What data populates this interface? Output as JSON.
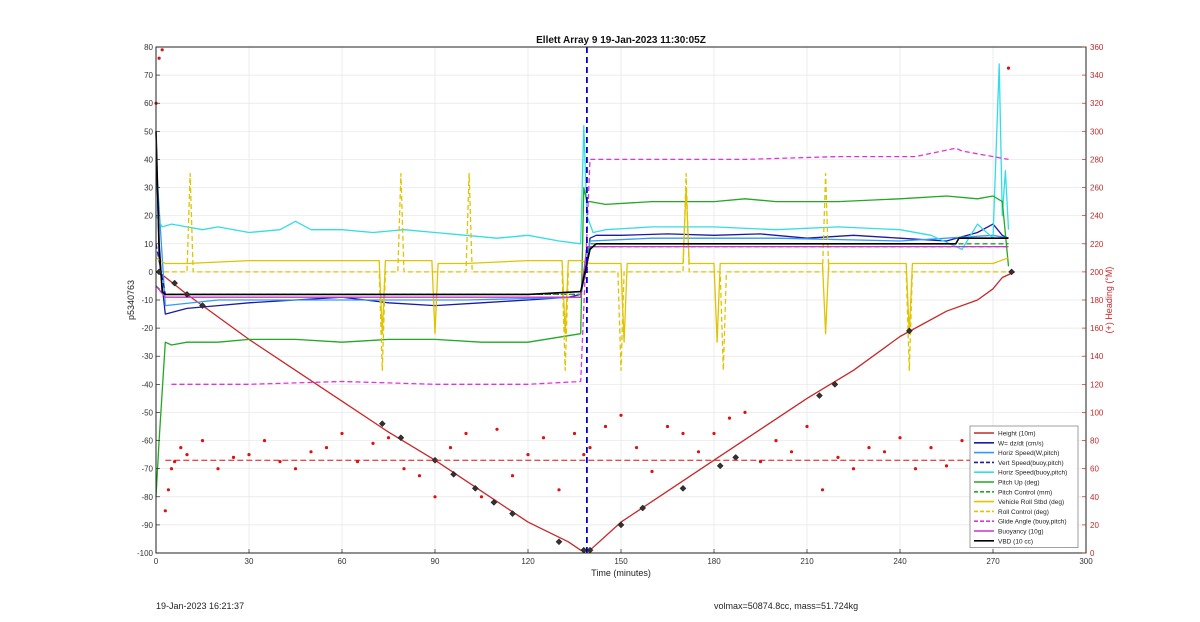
{
  "chart_data": {
    "type": "line",
    "title": "Ellett Array 9 19-Jan-2023 11:30:05Z",
    "xlabel": "Time (minutes)",
    "ylabel": "p5340763",
    "ylabel_right": "(+) Heading (°M)",
    "xlim": [
      0,
      300
    ],
    "ylim": [
      -100,
      80
    ],
    "ylim_right": [
      0,
      360
    ],
    "xticks": [
      0,
      30,
      60,
      90,
      120,
      150,
      180,
      210,
      240,
      270,
      300
    ],
    "yticks": [
      -100,
      -90,
      -80,
      -70,
      -60,
      -50,
      -40,
      -30,
      -20,
      -10,
      0,
      10,
      20,
      30,
      40,
      50,
      60,
      70,
      80
    ],
    "yticks_right": [
      0,
      20,
      40,
      60,
      80,
      100,
      120,
      140,
      160,
      180,
      200,
      220,
      240,
      260,
      280,
      300,
      320,
      340,
      360
    ],
    "grid": true,
    "legend_position": "bottom-right",
    "vertical_marker_x": 139,
    "colors": {
      "height": "#c62828",
      "wdzdt": "#1a1aa6",
      "horiz": "#3399ff",
      "cyan": "#33dde6",
      "pitch": "#22a822",
      "roll": "#e0c400",
      "glide": "#e033e0",
      "buoyancy": "#cc33cc",
      "vbd": "#000000",
      "heading": "#dd1111",
      "marker": "#0000cc"
    },
    "series": [
      {
        "name": "Height (10m)",
        "key": "height",
        "dash": false,
        "x": [
          0,
          2,
          10,
          20,
          30,
          45,
          60,
          75,
          90,
          105,
          120,
          133,
          137,
          140,
          150,
          165,
          180,
          195,
          210,
          225,
          240,
          255,
          265,
          270,
          273,
          277
        ],
        "y": [
          0,
          -1,
          -8,
          -16,
          -24,
          -35,
          -46,
          -57,
          -67,
          -78,
          -89,
          -96,
          -99,
          -99,
          -89,
          -78,
          -67,
          -56,
          -45,
          -35,
          -23,
          -14,
          -10,
          -6,
          -2,
          0
        ]
      },
      {
        "name": "W= dz/dt (cm/s)",
        "key": "wdzdt",
        "dash": false,
        "x": [
          0,
          1,
          3,
          10,
          20,
          30,
          45,
          60,
          75,
          90,
          105,
          120,
          133,
          137,
          139,
          140,
          142,
          150,
          165,
          180,
          195,
          210,
          225,
          240,
          255,
          265,
          270,
          273,
          275
        ],
        "y": [
          50,
          5,
          -15,
          -13,
          -12,
          -11,
          -10,
          -9,
          -11,
          -12,
          -11,
          -10,
          -9,
          -8,
          2,
          12,
          13,
          13,
          13.5,
          13,
          13.5,
          12,
          13,
          12,
          11,
          14,
          17,
          13,
          12
        ]
      },
      {
        "name": "Horiz Speed(W,pitch)",
        "key": "horiz",
        "dash": false,
        "x": [
          0,
          3,
          20,
          60,
          100,
          137,
          140,
          160,
          200,
          240,
          270,
          275
        ],
        "y": [
          40,
          -12,
          -10,
          -10,
          -10,
          -9,
          11,
          12,
          12,
          11,
          13,
          12
        ]
      },
      {
        "name": "Vert Speed(buoy,pitch)",
        "key": "wdzdt",
        "dash": true,
        "x": [
          0,
          3,
          50,
          100,
          137,
          140,
          200,
          250,
          275
        ],
        "y": [
          10,
          -8,
          -8,
          -8,
          -8,
          9,
          9,
          9,
          9
        ]
      },
      {
        "name": "Horiz Speed(buoy,pitch)",
        "key": "cyan",
        "dash": false,
        "x": [
          0,
          2,
          5,
          10,
          15,
          20,
          30,
          40,
          45,
          50,
          60,
          70,
          80,
          90,
          100,
          110,
          120,
          130,
          137,
          138,
          139,
          141,
          145,
          160,
          180,
          200,
          220,
          240,
          250,
          260,
          265,
          270,
          272,
          273,
          274,
          275
        ],
        "y": [
          20,
          16,
          17,
          16,
          15,
          16,
          14,
          15,
          18,
          15,
          15,
          14,
          15,
          14,
          13,
          12,
          13,
          11,
          10,
          52,
          20,
          14,
          15,
          16,
          16,
          15,
          16,
          15,
          13,
          8,
          17,
          12,
          74,
          20,
          36,
          15
        ]
      },
      {
        "name": "Pitch Up (deg)",
        "key": "pitch",
        "dash": false,
        "x": [
          0,
          1,
          3,
          5,
          10,
          20,
          30,
          45,
          60,
          75,
          90,
          105,
          120,
          137,
          138,
          139,
          140,
          145,
          160,
          180,
          190,
          200,
          210,
          220,
          240,
          255,
          265,
          270,
          273,
          275
        ],
        "y": [
          -80,
          -60,
          -25,
          -26,
          -25,
          -25,
          -24,
          -24,
          -25,
          -24,
          -24,
          -25,
          -25,
          -22,
          30,
          25,
          25,
          24,
          25,
          25,
          26,
          25,
          25,
          25,
          26,
          27,
          26,
          27,
          25,
          2
        ]
      },
      {
        "name": "Pitch Control (mm)",
        "key": "pitch",
        "dash": true,
        "x": [
          0,
          3,
          50,
          100,
          137,
          140,
          200,
          250,
          275
        ],
        "y": [
          -5,
          -8,
          -8,
          -8,
          -8,
          10,
          10,
          10,
          10
        ]
      },
      {
        "name": "Vehicle Roll Stbd (deg)",
        "key": "roll",
        "dash": false,
        "x": [
          0,
          3,
          10,
          30,
          60,
          72,
          73,
          74,
          80,
          89,
          90,
          91,
          100,
          120,
          131,
          132,
          133,
          137,
          140,
          150,
          151,
          152,
          160,
          170,
          171,
          172,
          180,
          181,
          182,
          190,
          210,
          215,
          216,
          217,
          240,
          242,
          243,
          244,
          270,
          275
        ],
        "y": [
          5,
          3,
          3,
          4,
          4,
          4,
          -22,
          4,
          4,
          4,
          -22,
          3,
          3,
          4,
          4,
          -22,
          4,
          4,
          3,
          3,
          -25,
          3,
          3,
          3,
          30,
          3,
          3,
          -25,
          3,
          3,
          3,
          3,
          -22,
          3,
          3,
          3,
          -22,
          3,
          3,
          5
        ]
      },
      {
        "name": "Roll Control (deg)",
        "key": "roll",
        "dash": true,
        "x": [
          0,
          3,
          10,
          11,
          12,
          20,
          72,
          73,
          74,
          78,
          79,
          80,
          100,
          101,
          102,
          131,
          132,
          133,
          137,
          140,
          149,
          150,
          151,
          170,
          171,
          172,
          182,
          183,
          184,
          215,
          216,
          217,
          242,
          243,
          244,
          270,
          275
        ],
        "y": [
          0,
          0,
          0,
          35,
          0,
          0,
          0,
          -35,
          0,
          0,
          35,
          0,
          0,
          35,
          0,
          0,
          -35,
          0,
          0,
          0,
          0,
          -35,
          0,
          0,
          35,
          0,
          0,
          -35,
          0,
          0,
          35,
          0,
          0,
          -35,
          0,
          0,
          0
        ]
      },
      {
        "name": "Glide Angle (buoy,pitch)",
        "key": "glide",
        "dash": true,
        "x": [
          5,
          30,
          60,
          90,
          120,
          137,
          140,
          160,
          190,
          220,
          245,
          258,
          260,
          270,
          275
        ],
        "y": [
          -40,
          -40,
          -39,
          -40,
          -40,
          -39,
          40,
          40,
          40,
          41,
          41,
          44,
          43,
          41,
          40
        ]
      },
      {
        "name": "Buoyancy (10g)",
        "key": "buoyancy",
        "dash": false,
        "x": [
          0,
          3,
          50,
          100,
          137,
          139,
          200,
          250,
          275
        ],
        "y": [
          -5,
          -9,
          -9,
          -9,
          -9,
          9,
          9,
          9,
          9
        ]
      },
      {
        "name": "VBD (10 cc)",
        "key": "vbd",
        "dash": false,
        "x": [
          0,
          1,
          2,
          3,
          30,
          60,
          90,
          120,
          137,
          140,
          142,
          160,
          200,
          240,
          258,
          259,
          260,
          270,
          275
        ],
        "y": [
          50,
          10,
          -7,
          -8,
          -8,
          -8,
          -8,
          -8,
          -7,
          8,
          10,
          10,
          10,
          10,
          10,
          12,
          12,
          12,
          12
        ]
      }
    ],
    "heading_series": {
      "name": "(+) Heading (°M)",
      "axis": "right",
      "mean": 66,
      "x": [
        0,
        1,
        2,
        3,
        4,
        5,
        6,
        8,
        10,
        15,
        20,
        25,
        30,
        35,
        40,
        45,
        50,
        55,
        60,
        65,
        70,
        75,
        80,
        85,
        90,
        95,
        100,
        105,
        110,
        115,
        120,
        125,
        130,
        135,
        138,
        140,
        145,
        150,
        155,
        160,
        165,
        170,
        175,
        180,
        185,
        190,
        195,
        200,
        205,
        210,
        215,
        220,
        225,
        230,
        235,
        240,
        245,
        250,
        255,
        260,
        265,
        270,
        273,
        275
      ],
      "y": [
        320,
        352,
        358,
        30,
        45,
        60,
        65,
        75,
        70,
        80,
        60,
        68,
        70,
        80,
        65,
        60,
        72,
        75,
        85,
        65,
        78,
        82,
        60,
        55,
        40,
        75,
        85,
        40,
        88,
        55,
        70,
        82,
        45,
        85,
        70,
        75,
        90,
        98,
        75,
        58,
        90,
        85,
        72,
        85,
        96,
        100,
        65,
        80,
        72,
        90,
        45,
        68,
        60,
        75,
        72,
        82,
        60,
        75,
        62,
        80,
        55,
        70,
        60,
        345
      ]
    },
    "markers": {
      "name": "Height (10m)",
      "x": [
        1,
        6,
        10,
        15,
        73,
        79,
        90,
        96,
        103,
        109,
        115,
        130,
        138,
        140,
        150,
        157,
        170,
        182,
        187,
        214,
        219,
        243,
        276
      ],
      "y": [
        0,
        -4,
        -8,
        -12,
        -54,
        -59,
        -67,
        -72,
        -77,
        -82,
        -86,
        -96,
        -99,
        -99,
        -90,
        -84,
        -77,
        -69,
        -66,
        -44,
        -40,
        -21,
        0
      ]
    }
  },
  "footer": {
    "timestamp": "19-Jan-2023 16:21:37",
    "summary": "volmax=50874.8cc, mass=51.724kg"
  }
}
